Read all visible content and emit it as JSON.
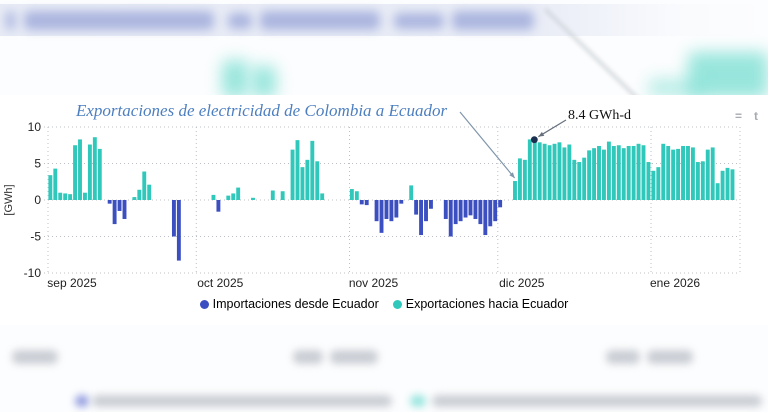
{
  "chart": {
    "modebar_glyphs": [
      "=",
      "t"
    ]
  },
  "chart_data": {
    "type": "bar",
    "title": "Exportaciones de electricidad de Colombia a Ecuador",
    "ylabel": "[GWh]",
    "ylim": [
      -10,
      10
    ],
    "y_ticks": [
      10,
      5,
      0,
      -5,
      -10
    ],
    "x_tick_labels": [
      "sep 2025",
      "oct 2025",
      "nov 2025",
      "dic 2025",
      "ene 2026"
    ],
    "month_start_indices": [
      0,
      30,
      61,
      91,
      122
    ],
    "x_unit": "day",
    "grid": "dotted",
    "legend_position": "bottom",
    "series": [
      {
        "name": "Importaciones desde Ecuador",
        "color": "#3b4fc1",
        "rule": "negative_values"
      },
      {
        "name": "Exportaciones hacia Ecuador",
        "color": "#2fc8ba",
        "rule": "positive_values"
      }
    ],
    "values": [
      3.4,
      4.3,
      1.0,
      0.9,
      0.8,
      7.5,
      8.3,
      1.0,
      7.6,
      8.6,
      7.0,
      0,
      -0.5,
      -3.3,
      -1.5,
      -2.6,
      0,
      0.4,
      1.4,
      3.9,
      2.1,
      0,
      0,
      0,
      0,
      -5.0,
      -8.3,
      0,
      0,
      0,
      0,
      0,
      0,
      0.7,
      -1.6,
      0,
      0.6,
      0.9,
      1.7,
      0,
      0,
      0.3,
      0,
      0,
      0,
      1.3,
      0,
      1.2,
      0,
      6.9,
      8.2,
      4.5,
      5.5,
      8.1,
      5.3,
      0.9,
      0,
      0,
      0,
      0,
      0,
      1.5,
      1.2,
      -0.6,
      -0.7,
      0,
      -2.9,
      -4.5,
      -2.6,
      -2.9,
      -2.4,
      -0.5,
      0,
      2.0,
      -2.0,
      -4.8,
      -2.9,
      -1.2,
      0,
      0,
      -2.6,
      -5.0,
      -3.3,
      -2.9,
      -2.4,
      -2.1,
      -2.6,
      -3.3,
      -4.8,
      -3.6,
      -2.9,
      -1.0,
      0,
      0,
      2.6,
      5.7,
      5.5,
      8.3,
      8.4,
      7.9,
      7.7,
      7.5,
      7.7,
      7.9,
      7.2,
      7.6,
      5.5,
      5.2,
      5.8,
      6.8,
      7.1,
      7.4,
      6.9,
      8.0,
      7.4,
      7.5,
      7.1,
      7.4,
      7.4,
      7.7,
      7.5,
      5.2,
      4.0,
      4.5,
      7.7,
      7.4,
      6.9,
      7.0,
      7.4,
      7.4,
      7.2,
      5.2,
      5.3,
      6.9,
      7.2,
      2.3,
      4.0,
      4.4,
      4.2,
      0
    ],
    "annotation": {
      "text": "8.4 GWh-d",
      "bar_index": 98,
      "value": 8.4
    },
    "title_arrow_bar_index": 94
  }
}
